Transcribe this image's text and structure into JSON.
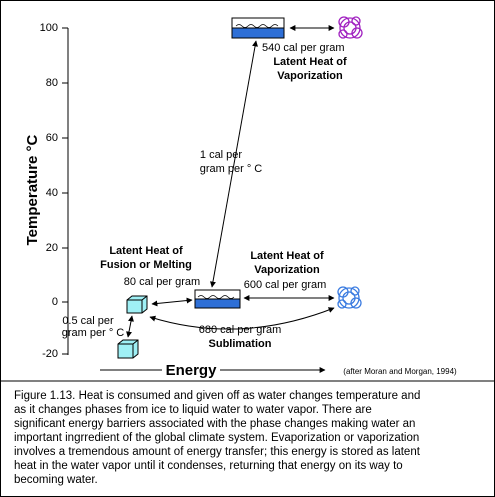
{
  "axis": {
    "title": "Temperature  °C",
    "ticks": [
      "100",
      "80",
      "60",
      "40",
      "20",
      "0",
      "-20"
    ],
    "x_title": "Energy"
  },
  "labels": {
    "vap_top_amount": "540 cal per gram",
    "vap_top_title_1": "Latent Heat of",
    "vap_top_title_2": "Vaporization",
    "heating_1": "1 cal per",
    "heating_2": "gram per ° C",
    "fusion_title_1": "Latent Heat of",
    "fusion_title_2": "Fusion or Melting",
    "fusion_amount": "80 cal per gram",
    "vap_bottom_title_1": "Latent Heat of",
    "vap_bottom_title_2": "Vaporization",
    "vap_bottom_amount": "600 cal per gram",
    "ice_1": "0.5 cal per",
    "ice_2": "gram per ° C",
    "sub_amount": "680 cal per gram",
    "sub_title": "Sublimation"
  },
  "source": "(after Moran and Morgan, 1994)",
  "caption": [
    "Figure 1.13.  Heat is consumed and given off as water changes temperature and",
    "as it changes phases from ice to liquid water to water vapor.  There are",
    "significant energy barriers associated with the phase changes making water an",
    "important ingrredient of the global climate system.  Evaporization or vaporization",
    "involves a tremendous amount of energy transfer; this energy is stored as latent",
    "heat in the water vapor until it condenses, returning that energy on its way to",
    "becoming water."
  ]
}
